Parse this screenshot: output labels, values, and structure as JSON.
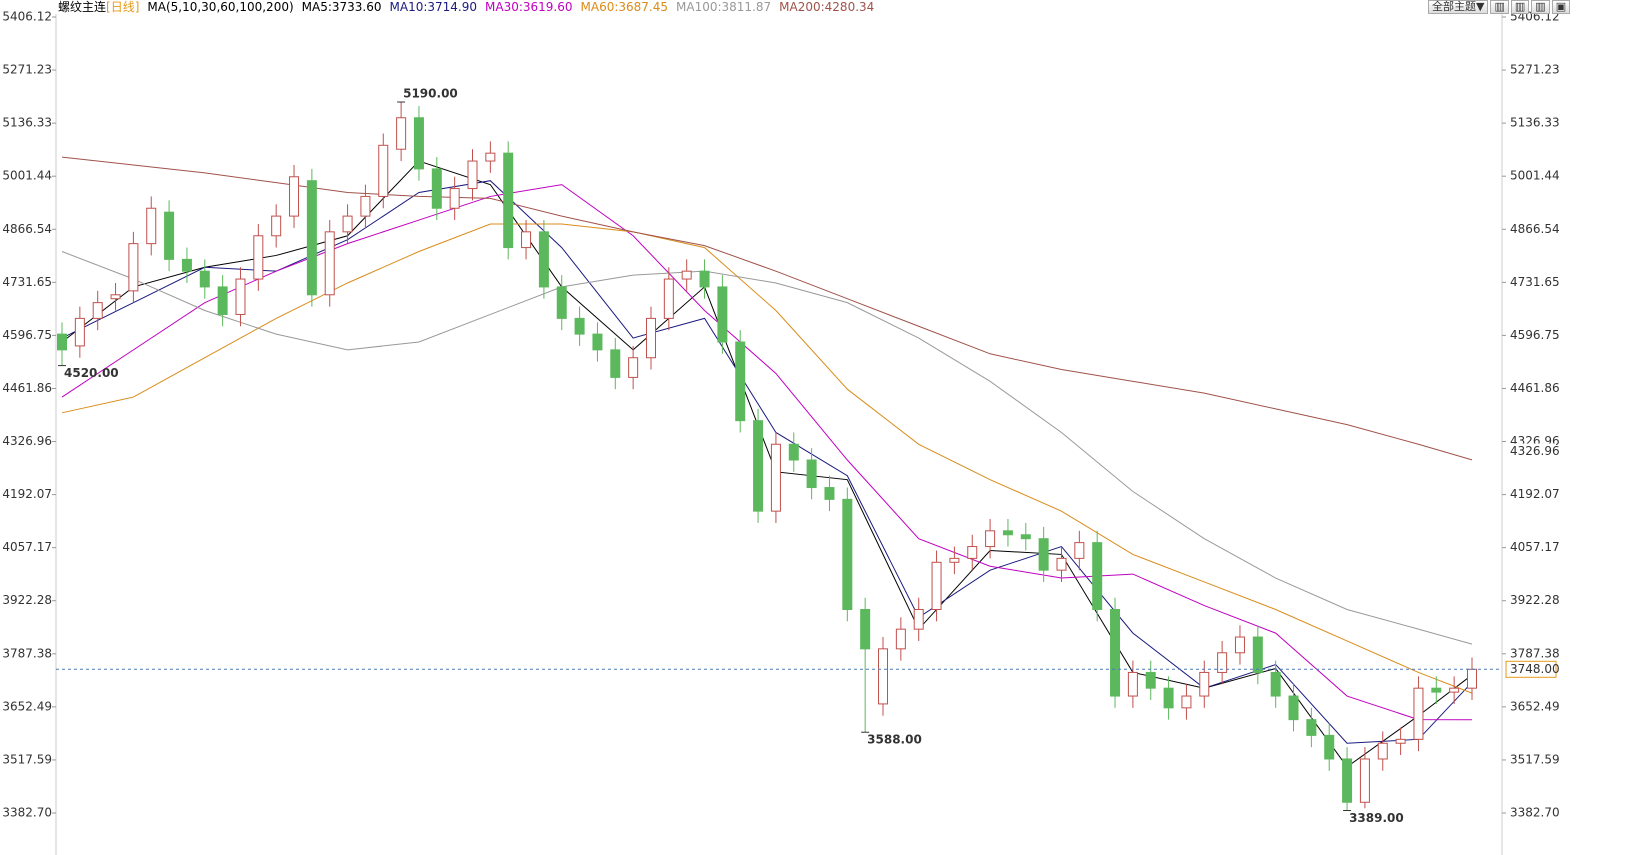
{
  "chart_data": {
    "type": "candlestick",
    "title": "螺纹主连",
    "period": "[日线]",
    "indicator": "MA(5,10,30,60,100,200)",
    "toolbar": "全部主题▼",
    "up_color": "#c0504d",
    "down_color": "#5cb85c",
    "ylim": [
      3382.7,
      5406.12
    ],
    "yticks": [
      {
        "value": 3382.7,
        "label": "3382.70"
      },
      3517.59,
      3652.49,
      3787.38,
      3922.28,
      4057.17,
      4192.07,
      4326.96,
      4461.86,
      4596.75,
      4731.65,
      4866.54,
      5001.44,
      5136.33,
      5271.23,
      5406.12
    ],
    "open": [
      4600,
      4570,
      4640,
      4690,
      4710,
      4830,
      4910,
      4790,
      4760,
      4720,
      4650,
      4740,
      4850,
      4900,
      4990,
      4700,
      4860,
      4900,
      4950,
      5070,
      5150,
      5020,
      4920,
      4970,
      5040,
      5060,
      4820,
      4860,
      4720,
      4640,
      4600,
      4560,
      4490,
      4540,
      4640,
      4740,
      4760,
      4720,
      4580,
      4380,
      4150,
      4320,
      4280,
      4210,
      4180,
      3900,
      3660,
      3800,
      3850,
      3900,
      4020,
      4030,
      4060,
      4100,
      4090,
      4080,
      4000,
      4030,
      4070,
      3900,
      3680,
      3740,
      3700,
      3650,
      3680,
      3740,
      3790,
      3830,
      3740,
      3680,
      3620,
      3580,
      3520,
      3410,
      3520,
      3560,
      3570,
      3700,
      3690,
      3700
    ],
    "high": [
      4630,
      4670,
      4710,
      4730,
      4860,
      4950,
      4940,
      4820,
      4790,
      4750,
      4770,
      4880,
      4930,
      5030,
      5020,
      4890,
      4930,
      4980,
      5110,
      5190,
      5180,
      5050,
      5000,
      5070,
      5090,
      5090,
      4890,
      4890,
      4750,
      4670,
      4630,
      4590,
      4570,
      4670,
      4770,
      4790,
      4790,
      4750,
      4610,
      4410,
      4350,
      4350,
      4310,
      4240,
      4210,
      3930,
      3830,
      3880,
      3930,
      4050,
      4060,
      4090,
      4130,
      4130,
      4120,
      4110,
      4060,
      4100,
      4100,
      3930,
      3770,
      3770,
      3730,
      3710,
      3770,
      3820,
      3860,
      3860,
      3770,
      3710,
      3650,
      3610,
      3550,
      3550,
      3590,
      3600,
      3730,
      3730,
      3730,
      3778
    ],
    "low": [
      4520,
      4540,
      4610,
      4660,
      4680,
      4800,
      4760,
      4730,
      4690,
      4620,
      4620,
      4710,
      4820,
      4870,
      4670,
      4670,
      4830,
      4870,
      4920,
      5040,
      4990,
      4890,
      4890,
      4940,
      5010,
      4790,
      4790,
      4690,
      4610,
      4570,
      4530,
      4460,
      4460,
      4510,
      4610,
      4710,
      4690,
      4550,
      4350,
      4120,
      4120,
      4250,
      4180,
      4150,
      3870,
      3588,
      3630,
      3770,
      3820,
      3870,
      3990,
      4000,
      4030,
      4060,
      4050,
      3970,
      3970,
      4000,
      3870,
      3650,
      3650,
      3670,
      3620,
      3620,
      3650,
      3710,
      3760,
      3710,
      3650,
      3590,
      3550,
      3490,
      3389,
      3395,
      3490,
      3530,
      3540,
      3660,
      3660,
      3670
    ],
    "close": [
      4560,
      4640,
      4680,
      4700,
      4830,
      4920,
      4790,
      4760,
      4720,
      4650,
      4740,
      4850,
      4900,
      5000,
      4700,
      4860,
      4900,
      4950,
      5080,
      5150,
      5020,
      4920,
      4970,
      5040,
      5060,
      4820,
      4860,
      4720,
      4640,
      4600,
      4560,
      4490,
      4540,
      4640,
      4740,
      4760,
      4720,
      4580,
      4380,
      4150,
      4320,
      4280,
      4210,
      4180,
      3900,
      3800,
      3800,
      3850,
      3900,
      4020,
      4030,
      4060,
      4100,
      4090,
      4080,
      4000,
      4030,
      4070,
      3900,
      3680,
      3740,
      3700,
      3650,
      3680,
      3740,
      3790,
      3830,
      3740,
      3680,
      3620,
      3580,
      3520,
      3410,
      3520,
      3560,
      3570,
      3700,
      3690,
      3700,
      3748
    ],
    "series": [
      {
        "name": "MA5:3733.60",
        "color": "#000000",
        "x": [
          0,
          4,
          8,
          12,
          16,
          20,
          24,
          28,
          32,
          36,
          40,
          44,
          48,
          52,
          56,
          60,
          64,
          68,
          72,
          76,
          79
        ],
        "values": [
          4580,
          4720,
          4770,
          4800,
          4850,
          5040,
          4980,
          4720,
          4560,
          4720,
          4250,
          4230,
          3850,
          4050,
          4040,
          3740,
          3700,
          3750,
          3500,
          3630,
          3733.6
        ]
      },
      {
        "name": "MA10:3714.90",
        "color": "#1a1a80",
        "x": [
          0,
          4,
          8,
          12,
          16,
          20,
          24,
          28,
          32,
          36,
          40,
          44,
          48,
          52,
          56,
          60,
          64,
          68,
          72,
          76,
          79
        ],
        "values": [
          4590,
          4680,
          4770,
          4760,
          4840,
          4960,
          4990,
          4820,
          4590,
          4640,
          4350,
          4240,
          3880,
          4000,
          4060,
          3840,
          3700,
          3760,
          3560,
          3570,
          3714.9
        ]
      },
      {
        "name": "MA30:3619.60",
        "color": "#c000c0",
        "x": [
          0,
          4,
          8,
          12,
          16,
          20,
          24,
          28,
          32,
          36,
          40,
          44,
          48,
          52,
          56,
          60,
          64,
          68,
          72,
          76,
          79
        ],
        "values": [
          4440,
          4560,
          4680,
          4760,
          4830,
          4890,
          4950,
          4980,
          4850,
          4660,
          4500,
          4280,
          4080,
          4010,
          3980,
          3990,
          3910,
          3840,
          3680,
          3620,
          3619.6
        ]
      },
      {
        "name": "MA60:3687.45",
        "color": "#d98c1a",
        "x": [
          0,
          4,
          8,
          12,
          16,
          20,
          24,
          28,
          32,
          36,
          40,
          44,
          48,
          52,
          56,
          60,
          64,
          68,
          72,
          76,
          79
        ],
        "values": [
          4400,
          4440,
          4540,
          4640,
          4730,
          4810,
          4880,
          4880,
          4860,
          4820,
          4660,
          4460,
          4320,
          4230,
          4150,
          4040,
          3970,
          3900,
          3820,
          3740,
          3687.45
        ]
      },
      {
        "name": "MA100:3811.87",
        "color": "#999999",
        "x": [
          0,
          4,
          8,
          12,
          16,
          20,
          24,
          28,
          32,
          36,
          40,
          44,
          48,
          52,
          56,
          60,
          64,
          68,
          72,
          76,
          79
        ],
        "values": [
          4810,
          4740,
          4660,
          4600,
          4560,
          4580,
          4650,
          4720,
          4750,
          4760,
          4730,
          4680,
          4590,
          4480,
          4350,
          4200,
          4080,
          3980,
          3900,
          3850,
          3811.87
        ]
      },
      {
        "name": "MA200:4280.34",
        "color": "#a0524a",
        "x": [
          0,
          4,
          8,
          12,
          16,
          20,
          24,
          28,
          32,
          36,
          40,
          44,
          48,
          52,
          56,
          60,
          64,
          68,
          72,
          76,
          79
        ],
        "values": [
          5050,
          5030,
          5010,
          4985,
          4960,
          4950,
          4945,
          4900,
          4860,
          4825,
          4760,
          4690,
          4620,
          4550,
          4510,
          4480,
          4450,
          4410,
          4370,
          4320,
          4280.34
        ]
      }
    ],
    "annotations": [
      {
        "text": "5190.00",
        "value": 5190,
        "x": 19,
        "color": "#c0392b"
      },
      {
        "text": "4520.00",
        "value": 4520,
        "x": 0,
        "color": "#5cb85c"
      },
      {
        "text": "3588.00",
        "value": 3588,
        "x": 45,
        "color": "#5cb85c"
      },
      {
        "text": "3389.00",
        "value": 3389,
        "x": 72,
        "color": "#5cb85c"
      }
    ],
    "side_label": {
      "text": "4326.96",
      "value": 4326.96,
      "color": "#e69a1a"
    },
    "last_price": {
      "value": 3748,
      "label": "3748.00",
      "color": "#4a7ab8"
    }
  }
}
